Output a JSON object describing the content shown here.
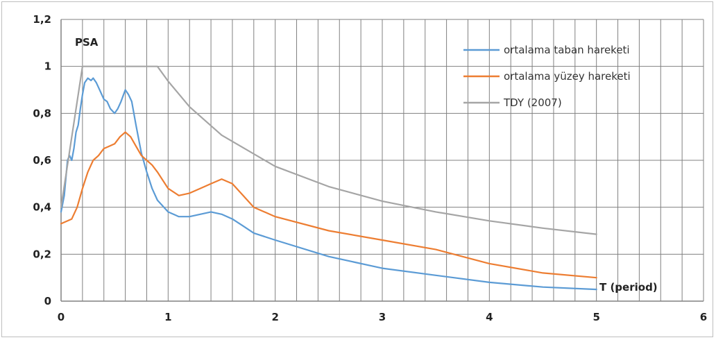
{
  "chart_data": {
    "type": "line",
    "title": "",
    "ylabel": "PSA",
    "xlabel": "T (period)",
    "xlim": [
      0,
      6
    ],
    "ylim": [
      0,
      1.2
    ],
    "x_ticks": [
      "0",
      "1",
      "2",
      "3",
      "4",
      "5",
      "6"
    ],
    "y_ticks": [
      "0",
      "0,2",
      "0,4",
      "0,6",
      "0,8",
      "1",
      "1,2"
    ],
    "grid": true,
    "legend_position": "top-right",
    "series": [
      {
        "name": "ortalama taban hareketi",
        "color": "#5b9bd5",
        "x": [
          0,
          0.03,
          0.06,
          0.08,
          0.1,
          0.12,
          0.14,
          0.16,
          0.18,
          0.2,
          0.22,
          0.25,
          0.28,
          0.3,
          0.33,
          0.36,
          0.4,
          0.43,
          0.46,
          0.5,
          0.53,
          0.56,
          0.6,
          0.63,
          0.66,
          0.7,
          0.75,
          0.8,
          0.85,
          0.9,
          1.0,
          1.1,
          1.2,
          1.3,
          1.4,
          1.5,
          1.6,
          1.7,
          1.8,
          2.0,
          2.5,
          3.0,
          3.5,
          4.0,
          4.5,
          5.0
        ],
        "y": [
          0.38,
          0.45,
          0.6,
          0.62,
          0.6,
          0.65,
          0.72,
          0.75,
          0.82,
          0.88,
          0.93,
          0.95,
          0.94,
          0.95,
          0.93,
          0.9,
          0.86,
          0.85,
          0.82,
          0.8,
          0.82,
          0.85,
          0.9,
          0.88,
          0.85,
          0.75,
          0.63,
          0.55,
          0.48,
          0.43,
          0.38,
          0.36,
          0.36,
          0.37,
          0.38,
          0.37,
          0.35,
          0.32,
          0.29,
          0.26,
          0.19,
          0.14,
          0.11,
          0.08,
          0.06,
          0.05
        ]
      },
      {
        "name": "ortalama yüzey hareketi",
        "color": "#ed7d31",
        "x": [
          0,
          0.05,
          0.1,
          0.15,
          0.2,
          0.25,
          0.3,
          0.35,
          0.4,
          0.45,
          0.5,
          0.55,
          0.6,
          0.65,
          0.7,
          0.75,
          0.8,
          0.85,
          0.9,
          1.0,
          1.1,
          1.2,
          1.3,
          1.4,
          1.5,
          1.6,
          1.7,
          1.8,
          2.0,
          2.5,
          3.0,
          3.5,
          4.0,
          4.5,
          5.0
        ],
        "y": [
          0.33,
          0.34,
          0.35,
          0.4,
          0.48,
          0.55,
          0.6,
          0.62,
          0.65,
          0.66,
          0.67,
          0.7,
          0.72,
          0.7,
          0.66,
          0.62,
          0.6,
          0.58,
          0.55,
          0.48,
          0.45,
          0.46,
          0.48,
          0.5,
          0.52,
          0.5,
          0.45,
          0.4,
          0.36,
          0.3,
          0.26,
          0.22,
          0.16,
          0.12,
          0.1
        ]
      },
      {
        "name": "TDY (2007)",
        "color": "#a5a5a5",
        "x": [
          0,
          0.2,
          0.9,
          1.0,
          1.2,
          1.5,
          2.0,
          2.5,
          3.0,
          3.5,
          4.0,
          4.5,
          5.0
        ],
        "y": [
          0.4,
          1.0,
          1.0,
          0.937,
          0.828,
          0.707,
          0.574,
          0.488,
          0.426,
          0.38,
          0.342,
          0.311,
          0.285
        ]
      }
    ]
  }
}
